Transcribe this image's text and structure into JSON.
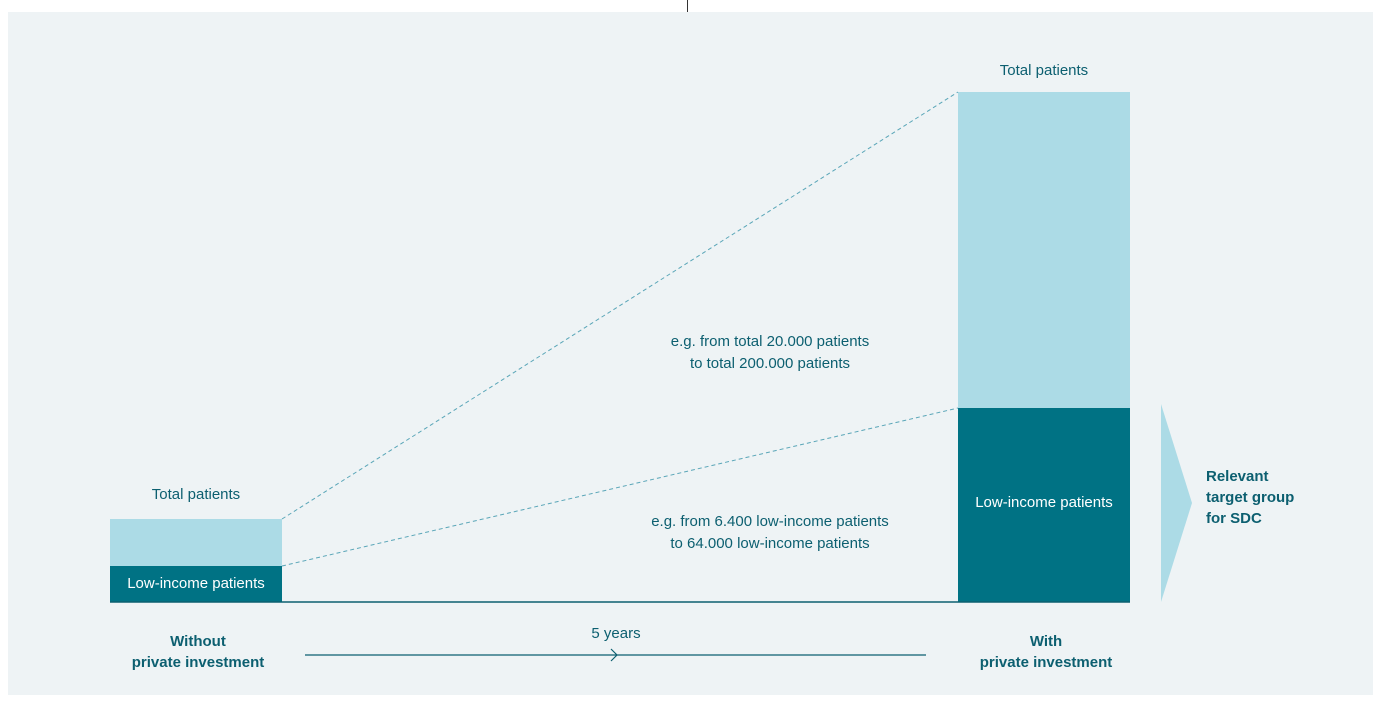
{
  "colors": {
    "light_teal": "#acdbe6",
    "dark_teal": "#007284",
    "text_teal": "#0c5f70",
    "background": "#eef3f5"
  },
  "left": {
    "total_label": "Total patients",
    "low_income_label": "Low-income patients",
    "caption_line1": "Without",
    "caption_line2": "private investment"
  },
  "right": {
    "total_label": "Total patients",
    "low_income_label": "Low-income patients",
    "caption_line1": "With",
    "caption_line2": "private investment"
  },
  "annotations": {
    "total_line1": "e.g. from total 20.000 patients",
    "total_line2": "to total 200.000 patients",
    "low_line1": "e.g. from 6.400 low-income patients",
    "low_line2": "to 64.000 low-income patients"
  },
  "timeline": {
    "label": "5 years"
  },
  "target": {
    "line1": "Relevant",
    "line2": "target group",
    "line3": "for SDC",
    "icon": "chevron-right-icon"
  }
}
